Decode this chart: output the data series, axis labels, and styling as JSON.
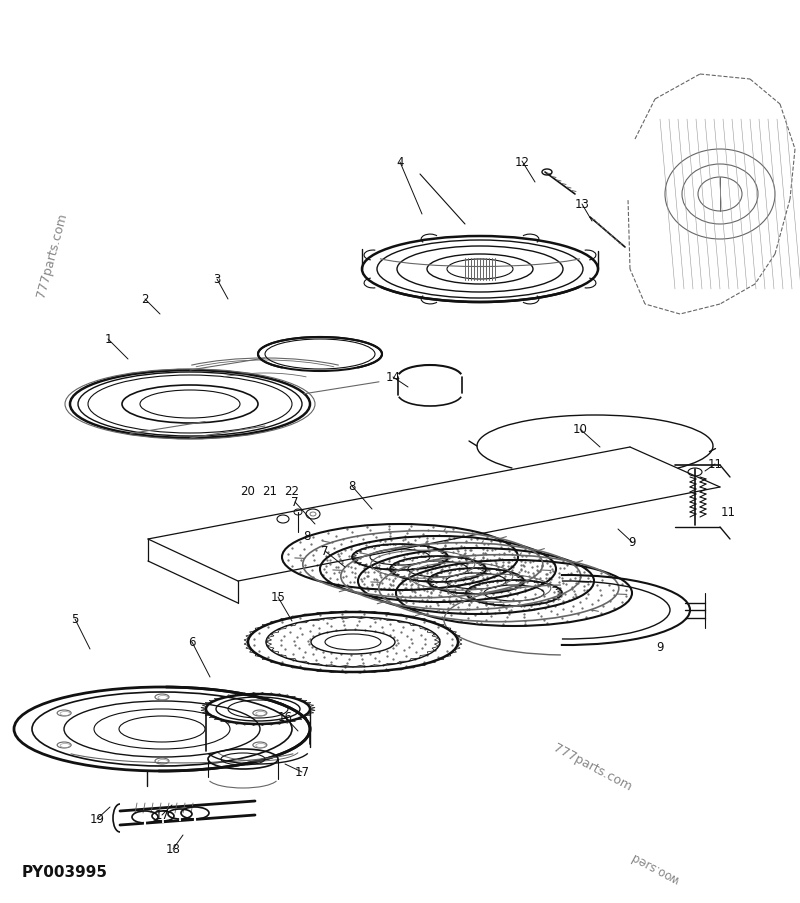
{
  "background_color": "#ffffff",
  "watermark_tl": "777parts.com",
  "watermark_br": "777parts.com",
  "watermark_br2": "woo.sɹed",
  "part_code": "PY003995",
  "fig_width": 8.0,
  "fig_height": 9.04,
  "dpi": 100,
  "color": "#111111",
  "gray": "#666666",
  "lgray": "#999999"
}
